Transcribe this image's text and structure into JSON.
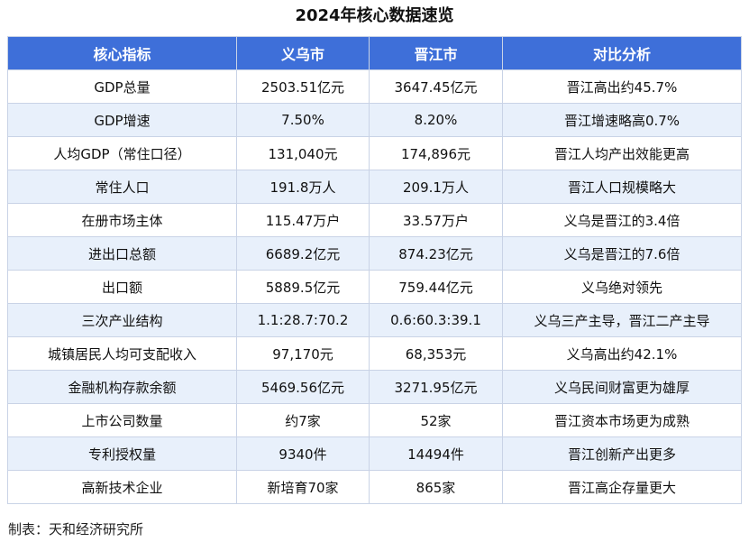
{
  "title": "2024年核心数据速览",
  "colors": {
    "header_bg": "#3e6fd9",
    "header_text": "#ffffff",
    "row_tint": "#e8f0fb",
    "border": "#c9d3e6"
  },
  "table": {
    "headers": [
      "核心指标",
      "义乌市",
      "晋江市",
      "对比分析"
    ],
    "rows": [
      [
        "GDP总量",
        "2503.51亿元",
        "3647.45亿元",
        "晋江高出约45.7%"
      ],
      [
        "GDP增速",
        "7.50%",
        "8.20%",
        "晋江增速略高0.7%"
      ],
      [
        "人均GDP（常住口径）",
        "131,040元",
        "174,896元",
        "晋江人均产出效能更高"
      ],
      [
        "常住人口",
        "191.8万人",
        "209.1万人",
        "晋江人口规模略大"
      ],
      [
        "在册市场主体",
        "115.47万户",
        "33.57万户",
        "义乌是晋江的3.4倍"
      ],
      [
        "进出口总额",
        "6689.2亿元",
        "874.23亿元",
        "义乌是晋江的7.6倍"
      ],
      [
        "出口额",
        "5889.5亿元",
        "759.44亿元",
        "义乌绝对领先"
      ],
      [
        "三次产业结构",
        "1.1:28.7:70.2",
        "0.6:60.3:39.1",
        "义乌三产主导，晋江二产主导"
      ],
      [
        "城镇居民人均可支配收入",
        "97,170元",
        "68,353元",
        "义乌高出约42.1%"
      ],
      [
        "金融机构存款余额",
        "5469.56亿元",
        "3271.95亿元",
        "义乌民间财富更为雄厚"
      ],
      [
        "上市公司数量",
        "约7家",
        "52家",
        "晋江资本市场更为成熟"
      ],
      [
        "专利授权量",
        "9340件",
        "14494件",
        "晋江创新产出更多"
      ],
      [
        "高新技术企业",
        "新培育70家",
        "865家",
        "晋江高企存量更大"
      ]
    ]
  },
  "footer": "制表：天和经济研究所"
}
